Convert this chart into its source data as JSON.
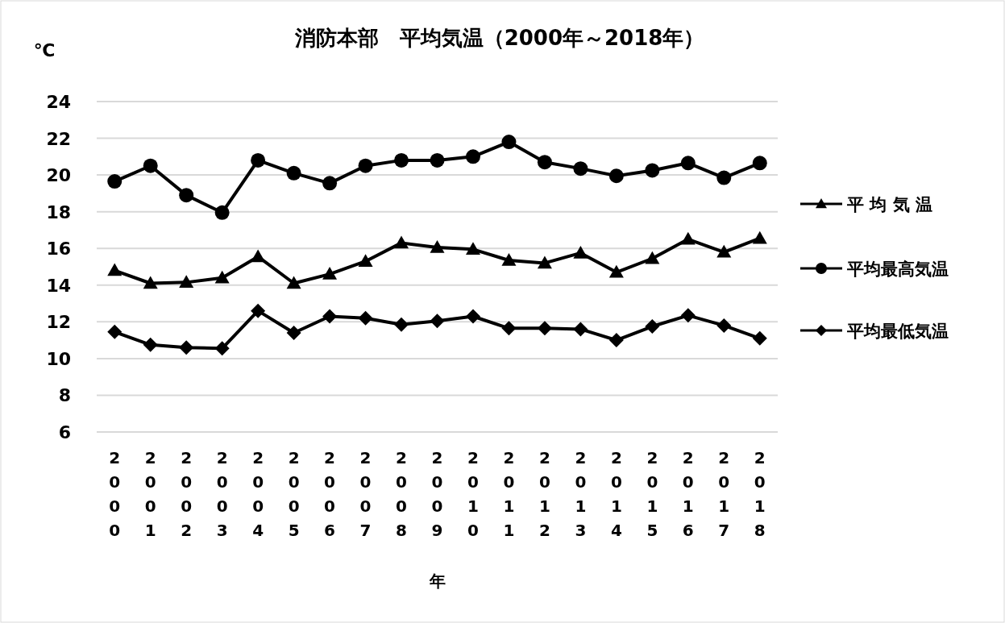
{
  "chart_data": {
    "type": "line",
    "title": "消防本部　平均気温（2000年～2018年）",
    "ylabel": "℃",
    "xlabel": "年",
    "categories": [
      "2000",
      "2001",
      "2002",
      "2003",
      "2004",
      "2005",
      "2006",
      "2007",
      "2008",
      "2009",
      "2010",
      "2011",
      "2012",
      "2013",
      "2014",
      "2015",
      "2016",
      "2017",
      "2018"
    ],
    "series": [
      {
        "name": "平 均 気 温",
        "color": "#000000",
        "marker": "triangle",
        "values": [
          14.8,
          14.1,
          14.15,
          14.4,
          15.55,
          14.1,
          14.6,
          15.3,
          16.3,
          16.05,
          15.95,
          15.35,
          15.2,
          15.75,
          14.7,
          15.45,
          16.5,
          15.8,
          16.55
        ]
      },
      {
        "name": "平均最高気温",
        "color": "#000000",
        "marker": "circle",
        "values": [
          19.65,
          20.5,
          18.9,
          17.95,
          20.8,
          20.1,
          19.55,
          20.5,
          20.8,
          20.8,
          21.0,
          21.8,
          20.7,
          20.35,
          19.95,
          20.25,
          20.65,
          19.85,
          20.65
        ]
      },
      {
        "name": "平均最低気温",
        "color": "#000000",
        "marker": "diamond",
        "values": [
          11.45,
          10.75,
          10.6,
          10.55,
          12.6,
          11.4,
          12.3,
          12.2,
          11.85,
          12.05,
          12.3,
          11.65,
          11.65,
          11.6,
          11.0,
          11.75,
          12.35,
          11.8,
          11.1
        ]
      }
    ],
    "ylim": [
      6,
      24
    ],
    "yticks": [
      6,
      8,
      10,
      12,
      14,
      16,
      18,
      20,
      22,
      24
    ],
    "grid": "y",
    "legend": "right"
  }
}
